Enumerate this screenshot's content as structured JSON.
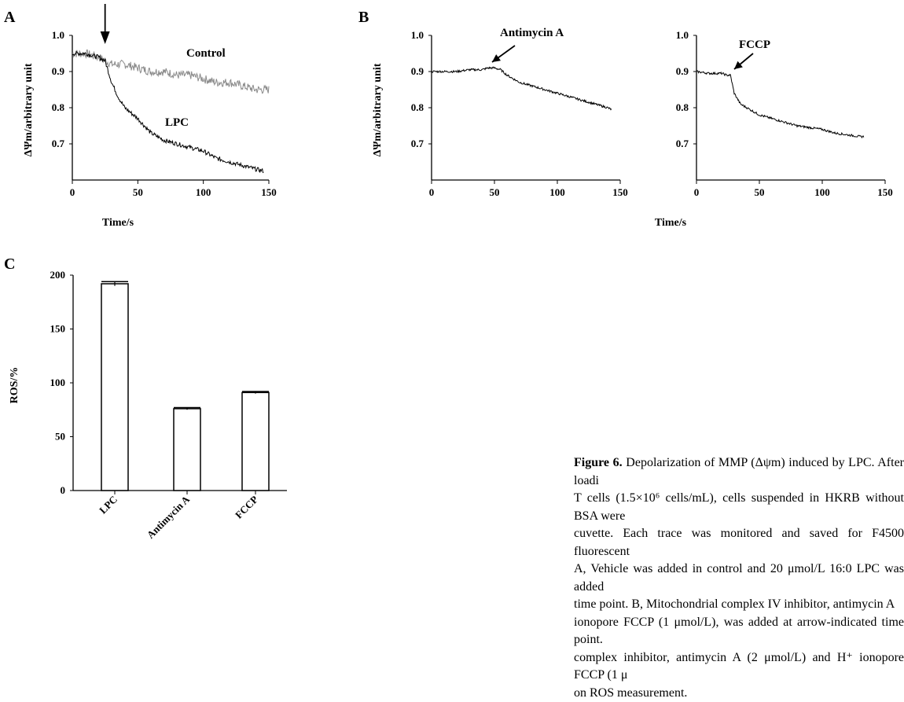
{
  "panels": {
    "A": "A",
    "B": "B",
    "C": "C"
  },
  "axis_titles": {
    "mmp_y": "ΔΨm/arbitrary unit",
    "time_x": "Time/s",
    "ros_y": "ROS/%"
  },
  "caption": {
    "label": "Figure 6.",
    "line1": "Depolarization of MMP (Δψm) induced by LPC. After loadi",
    "line2": "T cells (1.5×10⁶ cells/mL), cells suspended in HKRB without BSA were",
    "line3": "cuvette. Each trace was monitored and saved for F4500 fluorescent",
    "line4": "A, Vehicle was added in control and 20 μmol/L 16:0 LPC was added",
    "line5": "time point. B, Mitochondrial complex IV inhibitor, antimycin A",
    "line6": "ionopore FCCP (1 μmol/L), was added at arrow-indicated time point.",
    "line7": "complex inhibitor, antimycin A (2 μmol/L) and H⁺ ionopore FCCP (1 μ",
    "line8": "on ROS measurement."
  },
  "chart_data": [
    {
      "panel": "A",
      "type": "line",
      "xlabel": "Time/s",
      "ylabel": "ΔΨm/arbitrary unit",
      "xlim": [
        0,
        150
      ],
      "ylim": [
        0.6,
        1.0
      ],
      "xticks": [
        "0",
        "50",
        "100",
        "150"
      ],
      "yticks": [
        "1.0",
        "0.9",
        "0.8",
        "0.7"
      ],
      "arrow_at_time": 25,
      "series": [
        {
          "name": "Control",
          "color": "#8a8a8a",
          "points": [
            [
              0,
              0.95
            ],
            [
              10,
              0.95
            ],
            [
              20,
              0.94
            ],
            [
              30,
              0.92
            ],
            [
              40,
              0.92
            ],
            [
              50,
              0.91
            ],
            [
              60,
              0.9
            ],
            [
              70,
              0.9
            ],
            [
              80,
              0.89
            ],
            [
              90,
              0.89
            ],
            [
              100,
              0.88
            ],
            [
              110,
              0.87
            ],
            [
              120,
              0.87
            ],
            [
              130,
              0.86
            ],
            [
              140,
              0.85
            ],
            [
              150,
              0.85
            ]
          ]
        },
        {
          "name": "LPC",
          "color": "#000000",
          "points": [
            [
              0,
              0.95
            ],
            [
              10,
              0.95
            ],
            [
              20,
              0.94
            ],
            [
              25,
              0.93
            ],
            [
              30,
              0.87
            ],
            [
              35,
              0.83
            ],
            [
              40,
              0.8
            ],
            [
              50,
              0.77
            ],
            [
              60,
              0.73
            ],
            [
              70,
              0.71
            ],
            [
              80,
              0.7
            ],
            [
              90,
              0.69
            ],
            [
              100,
              0.68
            ],
            [
              110,
              0.66
            ],
            [
              120,
              0.65
            ],
            [
              130,
              0.64
            ],
            [
              140,
              0.63
            ],
            [
              146,
              0.625
            ]
          ]
        }
      ]
    },
    {
      "panel": "B-left",
      "type": "line",
      "xlim": [
        0,
        150
      ],
      "ylim": [
        0.6,
        1.0
      ],
      "xticks": [
        "0",
        "50",
        "100",
        "150"
      ],
      "yticks": [
        "1.0",
        "0.9",
        "0.8",
        "0.7"
      ],
      "annotation": "Antimycin A",
      "arrow_at_time": 45,
      "series": [
        {
          "color": "#000000",
          "points": [
            [
              0,
              0.9
            ],
            [
              10,
              0.9
            ],
            [
              20,
              0.9
            ],
            [
              30,
              0.905
            ],
            [
              40,
              0.905
            ],
            [
              45,
              0.91
            ],
            [
              50,
              0.91
            ],
            [
              55,
              0.905
            ],
            [
              60,
              0.89
            ],
            [
              70,
              0.87
            ],
            [
              80,
              0.86
            ],
            [
              90,
              0.85
            ],
            [
              100,
              0.84
            ],
            [
              110,
              0.83
            ],
            [
              120,
              0.82
            ],
            [
              130,
              0.81
            ],
            [
              140,
              0.8
            ],
            [
              143,
              0.795
            ]
          ]
        }
      ]
    },
    {
      "panel": "B-right",
      "type": "line",
      "xlim": [
        0,
        150
      ],
      "ylim": [
        0.6,
        1.0
      ],
      "xticks": [
        "0",
        "50",
        "100",
        "150"
      ],
      "yticks": [
        "1.0",
        "0.9",
        "0.8",
        "0.7"
      ],
      "xlabel": "Time/s",
      "annotation": "FCCP",
      "arrow_at_time": 24,
      "series": [
        {
          "color": "#000000",
          "points": [
            [
              0,
              0.9
            ],
            [
              10,
              0.895
            ],
            [
              20,
              0.895
            ],
            [
              24,
              0.89
            ],
            [
              27,
              0.89
            ],
            [
              30,
              0.84
            ],
            [
              35,
              0.81
            ],
            [
              40,
              0.8
            ],
            [
              50,
              0.78
            ],
            [
              60,
              0.77
            ],
            [
              70,
              0.76
            ],
            [
              80,
              0.75
            ],
            [
              90,
              0.745
            ],
            [
              100,
              0.74
            ],
            [
              110,
              0.73
            ],
            [
              120,
              0.725
            ],
            [
              130,
              0.72
            ],
            [
              133,
              0.72
            ]
          ]
        }
      ]
    },
    {
      "panel": "C",
      "type": "bar",
      "ylabel": "ROS/%",
      "categories": [
        "LPC",
        "Antimycin A",
        "FCCP"
      ],
      "values": [
        192,
        76,
        91
      ],
      "errors": [
        2,
        1,
        1
      ],
      "ylim": [
        0,
        200
      ],
      "yticks": [
        "200",
        "150",
        "100",
        "50",
        "0"
      ]
    }
  ]
}
